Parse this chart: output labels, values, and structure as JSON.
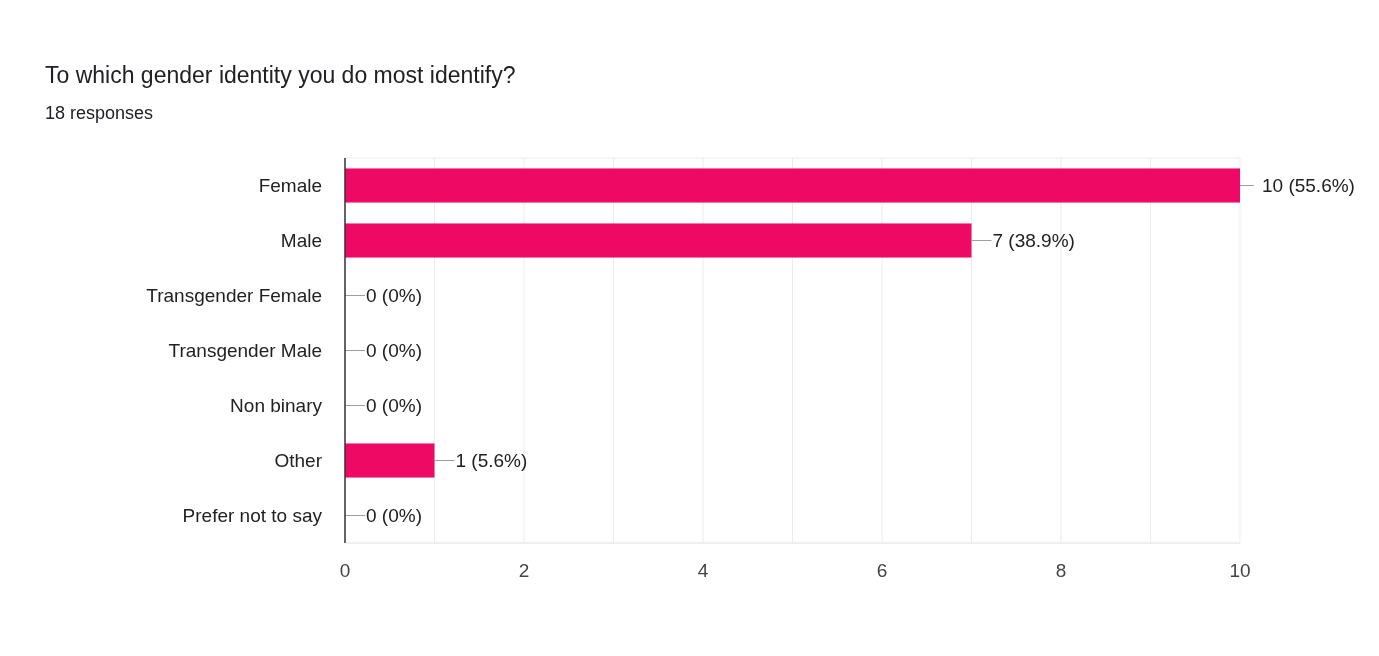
{
  "chart_data": {
    "type": "bar",
    "orientation": "horizontal",
    "title": "To which gender identity you do most identify?",
    "subtitle": "18 responses",
    "categories": [
      "Female",
      "Male",
      "Transgender Female",
      "Transgender Male",
      "Non binary",
      "Other",
      "Prefer not to say"
    ],
    "values": [
      10,
      7,
      0,
      0,
      0,
      1,
      0
    ],
    "value_labels": [
      "10 (55.6%)",
      "7 (38.9%)",
      "0 (0%)",
      "0 (0%)",
      "0 (0%)",
      "1 (5.6%)",
      "0 (0%)"
    ],
    "color": "#ee0a64",
    "xlim": [
      0,
      10
    ],
    "xticks": [
      0,
      {
        "value": 1,
        "label": null
      },
      2,
      {
        "value": 3,
        "label": null
      },
      4,
      {
        "value": 5,
        "label": null
      },
      6,
      {
        "value": 7,
        "label": null
      },
      8,
      {
        "value": 9,
        "label": null
      },
      10
    ],
    "grid": "x"
  }
}
